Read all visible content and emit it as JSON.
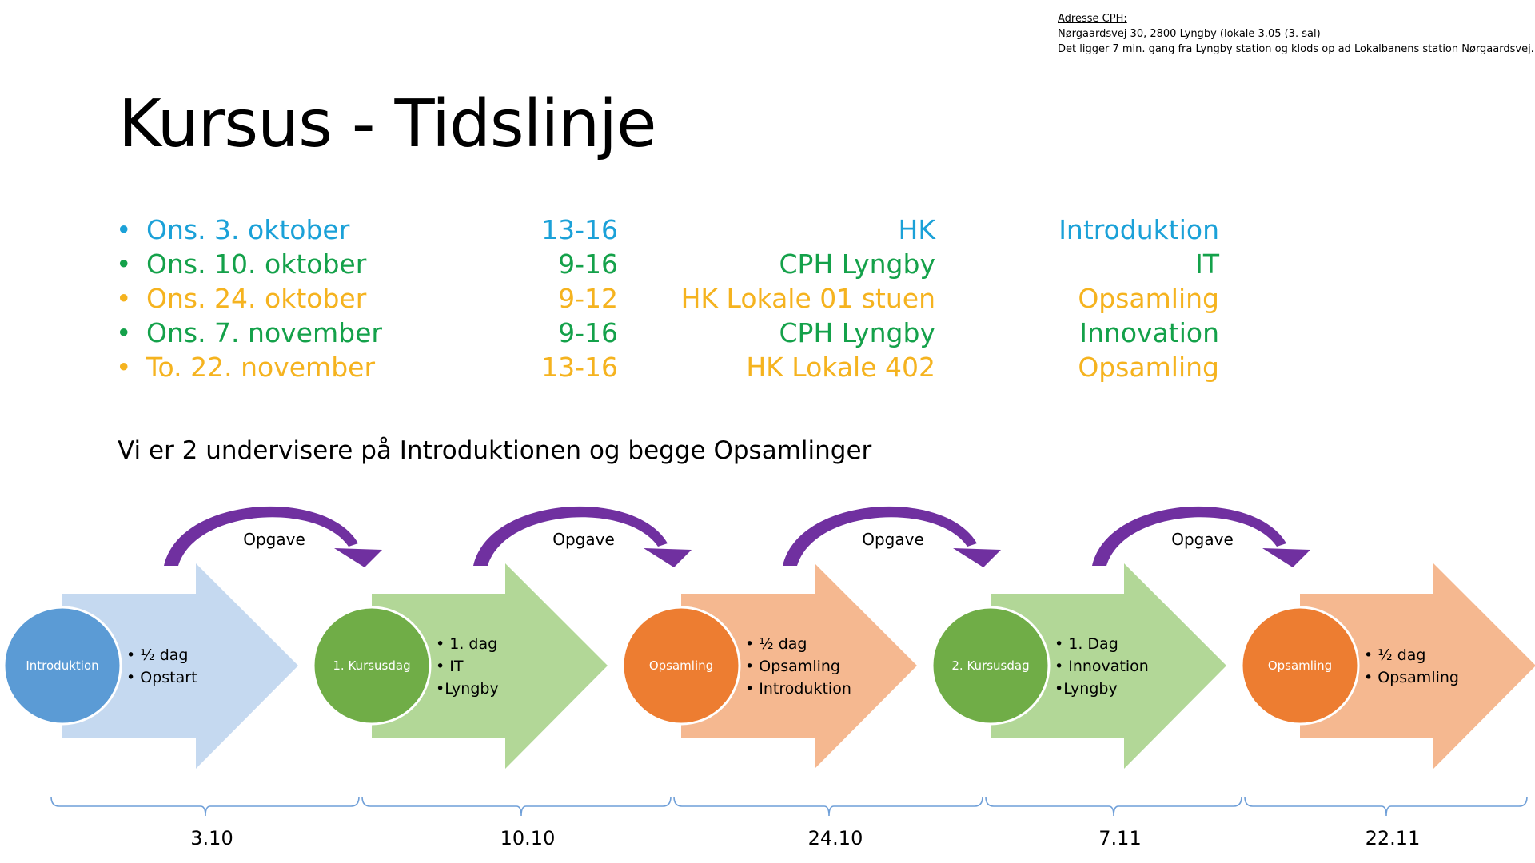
{
  "address": {
    "heading": "Adresse CPH:",
    "line1": "Nørgaardsvej 30, 2800 Lyngby (lokale 3.05 (3. sal)",
    "line2": "Det ligger 7 min. gang fra Lyngby station og klods op ad Lokalbanens station Nørgaardsvej."
  },
  "title": "Kursus - Tidslinje",
  "schedule": [
    {
      "date": "Ons. 3. oktober",
      "time": "13-16",
      "place": "HK",
      "topic": "Introduktion",
      "color": "#1ba1d8"
    },
    {
      "date": "Ons. 10. oktober",
      "time": "9-16",
      "place": "CPH Lyngby",
      "topic": "IT",
      "color": "#14a14a"
    },
    {
      "date": "Ons. 24. oktober",
      "time": "9-12",
      "place": "HK Lokale 01 stuen",
      "topic": "Opsamling",
      "color": "#f5b31f"
    },
    {
      "date": "Ons. 7. november",
      "time": "9-16",
      "place": "CPH Lyngby",
      "topic": "Innovation",
      "color": "#14a14a"
    },
    {
      "date": "To. 22. november",
      "time": "13-16",
      "place": "HK Lokale 402",
      "topic": "Opsamling",
      "color": "#f5b31f"
    }
  ],
  "note": "Vi er 2 undervisere på Introduktionen og begge Opsamlinger",
  "task_arrow_label": "Opgave",
  "stages": [
    {
      "circle_label": "Introduktion",
      "bullets": [
        "• ½ dag",
        "• Opstart"
      ],
      "circle_color": "#5b9bd5",
      "arrow_color": "#c5d9f0"
    },
    {
      "circle_label": "1. Kursusdag",
      "bullets": [
        "• 1. dag",
        "• IT",
        "•Lyngby"
      ],
      "circle_color": "#70ad47",
      "arrow_color": "#b2d797"
    },
    {
      "circle_label": "Opsamling",
      "bullets": [
        "• ½ dag",
        "• Opsamling",
        "• Introduktion"
      ],
      "circle_color": "#ed7d31",
      "arrow_color": "#f5b890"
    },
    {
      "circle_label": "2. Kursusdag",
      "bullets": [
        "• 1. Dag",
        "• Innovation",
        "•Lyngby"
      ],
      "circle_color": "#70ad47",
      "arrow_color": "#b2d797"
    },
    {
      "circle_label": "Opsamling",
      "bullets": [
        "• ½ dag",
        "• Opsamling"
      ],
      "circle_color": "#ed7d31",
      "arrow_color": "#f5b890"
    }
  ],
  "timeline_dates": [
    "3.10",
    "10.10",
    "24.10",
    "7.11",
    "22.11"
  ],
  "colors": {
    "task_arrow": "#7030a0",
    "bracket": "#6f9fd8"
  }
}
